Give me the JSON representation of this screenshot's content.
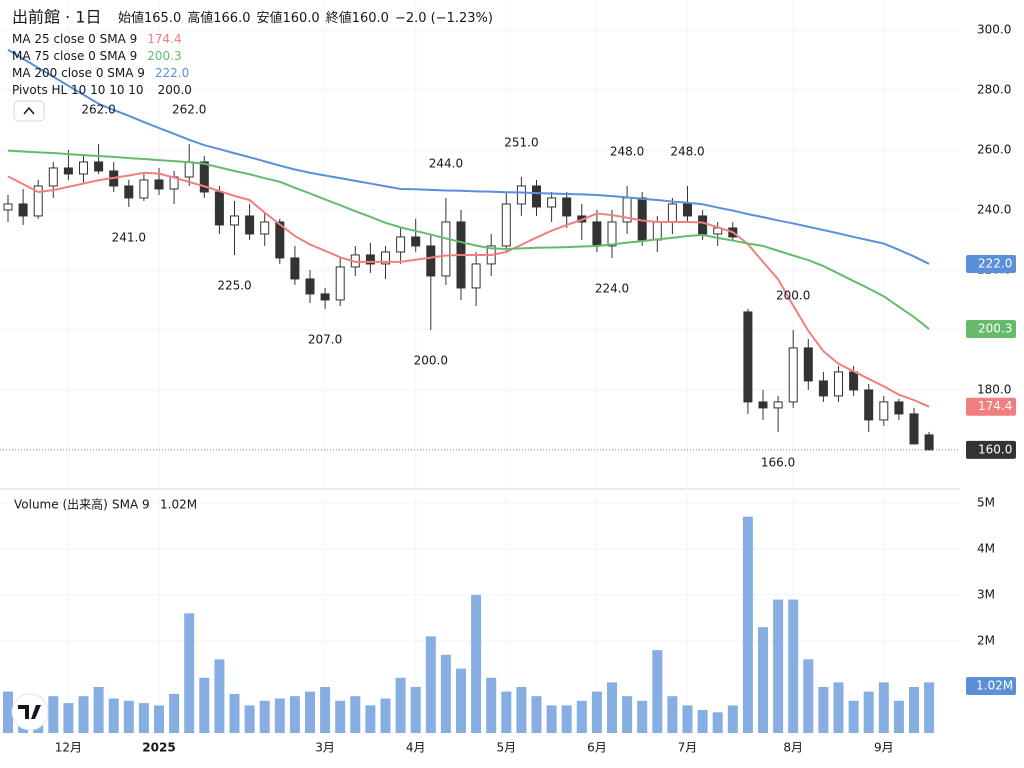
{
  "chart_data": [
    {
      "type": "candlestick",
      "title": "出前館 · 1日",
      "ohlc_legend": [
        {
          "name": "始値",
          "value_label": "165.0"
        },
        {
          "name": "高値",
          "value_label": "166.0"
        },
        {
          "name": "安値",
          "value_label": "160.0"
        },
        {
          "name": "終値",
          "value_label": "160.0"
        }
      ],
      "change_label": "−2.0 (−1.23%)",
      "open": [
        240,
        242,
        238,
        248,
        254,
        252,
        256,
        253,
        248,
        244,
        250,
        247,
        251,
        256,
        246,
        235,
        238,
        232,
        236,
        224,
        217,
        212,
        210,
        221,
        225,
        222,
        226,
        231,
        228,
        218,
        236,
        214,
        222,
        228,
        242,
        248,
        241,
        244,
        238,
        236,
        228,
        236,
        244,
        230,
        236,
        242,
        238,
        232,
        234,
        206,
        176,
        174,
        176,
        194,
        183,
        178,
        186,
        180,
        170,
        176,
        172,
        165
      ],
      "high": [
        245,
        247,
        250,
        256,
        260,
        258,
        262,
        256,
        250,
        252,
        254,
        253,
        262,
        258,
        248,
        243,
        242,
        239,
        237,
        228,
        220,
        214,
        224,
        228,
        229,
        228,
        234,
        237,
        232,
        244,
        240,
        226,
        232,
        246,
        251,
        250,
        246,
        246,
        242,
        240,
        240,
        248,
        246,
        238,
        244,
        248,
        240,
        236,
        236,
        207,
        180,
        178,
        200,
        197,
        186,
        188,
        188,
        182,
        178,
        177,
        174,
        166
      ],
      "low": [
        236,
        235,
        237,
        244,
        250,
        249,
        252,
        246,
        241,
        243,
        245,
        242,
        248,
        244,
        232,
        225,
        230,
        228,
        222,
        215,
        209,
        207,
        208,
        218,
        219,
        217,
        222,
        226,
        200,
        215,
        210,
        208,
        218,
        226,
        238,
        238,
        236,
        234,
        230,
        226,
        224,
        232,
        228,
        226,
        232,
        236,
        230,
        228,
        230,
        172,
        170,
        166,
        174,
        180,
        176,
        176,
        178,
        166,
        168,
        170,
        162,
        160
      ],
      "close": [
        242,
        238,
        248,
        254,
        252,
        256,
        253,
        248,
        244,
        250,
        247,
        251,
        256,
        246,
        235,
        238,
        232,
        236,
        224,
        217,
        212,
        210,
        221,
        225,
        222,
        226,
        231,
        228,
        218,
        236,
        214,
        222,
        228,
        242,
        248,
        241,
        244,
        238,
        236,
        228,
        236,
        244,
        230,
        236,
        242,
        238,
        232,
        234,
        231,
        176,
        174,
        176,
        194,
        183,
        178,
        186,
        180,
        170,
        176,
        172,
        162,
        160
      ],
      "up_color": "#ffffff",
      "down_color": "#333333",
      "outline_color": "#333333",
      "series": [
        {
          "name": "MA 25 close 0 SMA 9",
          "color": "#f07f7f",
          "last_label": "174.4",
          "values": [
            251.2,
            248.6,
            246.0,
            246.6,
            247.7,
            248.8,
            249.9,
            250.7,
            251.5,
            252.4,
            252.1,
            250.8,
            249.3,
            247.9,
            246.3,
            244.7,
            243.3,
            239.1,
            235.2,
            231.3,
            228.5,
            226.4,
            224.2,
            222.7,
            222.7,
            222.7,
            222.7,
            223.4,
            224.1,
            224.8,
            225.0,
            225.0,
            225.0,
            226.0,
            228.4,
            230.8,
            233.1,
            235.0,
            236.7,
            238.8,
            238.3,
            237.4,
            236.5,
            236.0,
            236.0,
            236.0,
            235.8,
            234.2,
            232.6,
            228.6,
            222.7,
            216.9,
            208.1,
            199.7,
            192.9,
            188.7,
            186.2,
            183.7,
            181.2,
            178.4,
            176.6,
            174.4
          ]
        },
        {
          "name": "MA 75 close 0 SMA 9",
          "color": "#66bb6a",
          "last_label": "200.3",
          "values": [
            259.8,
            259.5,
            259.2,
            259.0,
            258.6,
            258.3,
            258.0,
            257.7,
            257.3,
            257.0,
            256.6,
            256.3,
            255.9,
            255.4,
            254.2,
            253.0,
            251.9,
            250.6,
            249.4,
            247.4,
            245.5,
            243.5,
            241.6,
            239.6,
            237.7,
            235.7,
            234.2,
            233.0,
            231.8,
            230.5,
            229.3,
            228.1,
            227.2,
            227.0,
            227.2,
            227.4,
            227.5,
            227.6,
            227.8,
            228.0,
            228.5,
            229.1,
            229.6,
            230.2,
            230.7,
            231.3,
            231.7,
            230.7,
            229.8,
            228.8,
            228.0,
            226.4,
            224.8,
            223.3,
            221.3,
            218.8,
            216.3,
            213.8,
            211.2,
            207.7,
            204.3,
            200.3
          ]
        },
        {
          "name": "MA 200 close 0 SMA 9",
          "color": "#5b8fd9",
          "last_label": "222.0",
          "values": [
            293.4,
            290.4,
            287.4,
            284.4,
            281.4,
            278.4,
            275.4,
            273.3,
            271.4,
            269.3,
            267.3,
            265.4,
            263.4,
            261.6,
            260.3,
            258.9,
            257.6,
            256.2,
            254.8,
            253.5,
            252.4,
            251.5,
            250.6,
            249.7,
            248.8,
            247.9,
            247.0,
            246.9,
            246.7,
            246.5,
            246.4,
            246.2,
            246.1,
            245.9,
            245.8,
            245.6,
            245.5,
            245.3,
            245.2,
            245.0,
            244.6,
            244.2,
            243.7,
            243.3,
            242.8,
            242.4,
            241.9,
            240.8,
            239.8,
            238.6,
            237.6,
            236.5,
            235.5,
            234.4,
            233.3,
            232.2,
            231.0,
            229.9,
            228.8,
            226.7,
            224.5,
            222.0
          ]
        }
      ],
      "pivots": {
        "name": "Pivots HL 10 10 10 10",
        "last_label": "200.0",
        "points": [
          {
            "value": 262,
            "label": "262.0",
            "kind": "high"
          },
          {
            "value": 241,
            "label": "241.0",
            "kind": "low"
          },
          {
            "value": 262,
            "label": "262.0",
            "kind": "high"
          },
          {
            "value": 225,
            "label": "225.0",
            "kind": "low"
          },
          {
            "value": 207,
            "label": "207.0",
            "kind": "low"
          },
          {
            "value": 200,
            "label": "200.0",
            "kind": "low"
          },
          {
            "value": 244,
            "label": "244.0",
            "kind": "high"
          },
          {
            "value": 251,
            "label": "251.0",
            "kind": "high"
          },
          {
            "value": 224,
            "label": "224.0",
            "kind": "low"
          },
          {
            "value": 248,
            "label": "248.0",
            "kind": "high"
          },
          {
            "value": 248,
            "label": "248.0",
            "kind": "high"
          },
          {
            "value": 166,
            "label": "166.0",
            "kind": "low"
          },
          {
            "value": 200,
            "label": "200.0",
            "kind": "high"
          }
        ]
      },
      "last_price_label": "160.0",
      "ylim": [
        147.3,
        310
      ],
      "yticks": [
        {
          "value": 180,
          "label": "180.0"
        },
        {
          "value": 200,
          "label": "200.0"
        },
        {
          "value": 220,
          "label": "220.0"
        },
        {
          "value": 240,
          "label": "240.0"
        },
        {
          "value": 260,
          "label": "260.0"
        },
        {
          "value": 280,
          "label": "280.0"
        },
        {
          "value": 300,
          "label": "300.0"
        }
      ],
      "grid": true
    },
    {
      "type": "bar",
      "title": "Volume (出来高)",
      "subtitle": "SMA 9",
      "sma_value": 1020000,
      "sma_value_label": "1.02M",
      "categories": [
        null,
        null,
        null,
        null,
        "12月",
        null,
        null,
        null,
        null,
        null,
        "2025",
        null,
        null,
        null,
        null,
        null,
        null,
        null,
        null,
        null,
        null,
        "3月",
        null,
        null,
        null,
        null,
        null,
        "4月",
        null,
        null,
        null,
        null,
        null,
        "5月",
        null,
        null,
        null,
        null,
        null,
        "6月",
        null,
        null,
        null,
        null,
        null,
        "7月",
        null,
        null,
        null,
        null,
        null,
        null,
        "8月",
        null,
        null,
        null,
        null,
        null,
        "9月",
        null,
        null,
        null
      ],
      "values": [
        900000,
        700000,
        750000,
        800000,
        650000,
        800000,
        1000000,
        750000,
        700000,
        650000,
        600000,
        850000,
        2600000,
        1200000,
        1600000,
        850000,
        600000,
        700000,
        750000,
        800000,
        900000,
        1000000,
        700000,
        800000,
        600000,
        750000,
        1200000,
        1000000,
        2100000,
        1700000,
        1400000,
        3000000,
        1200000,
        900000,
        1000000,
        800000,
        600000,
        600000,
        700000,
        900000,
        1100000,
        800000,
        700000,
        1800000,
        800000,
        600000,
        500000,
        450000,
        600000,
        4700000,
        2300000,
        2900000,
        2900000,
        1600000,
        1000000,
        1100000,
        700000,
        900000,
        1100000,
        700000,
        1000000,
        1100000
      ],
      "color": "#86aee3",
      "ylim": [
        0,
        5280000
      ],
      "yticks": [
        {
          "value": 2000000,
          "label": "2M"
        },
        {
          "value": 3000000,
          "label": "3M"
        },
        {
          "value": 4000000,
          "label": "4M"
        },
        {
          "value": 5000000,
          "label": "5M"
        }
      ],
      "grid": true
    }
  ]
}
